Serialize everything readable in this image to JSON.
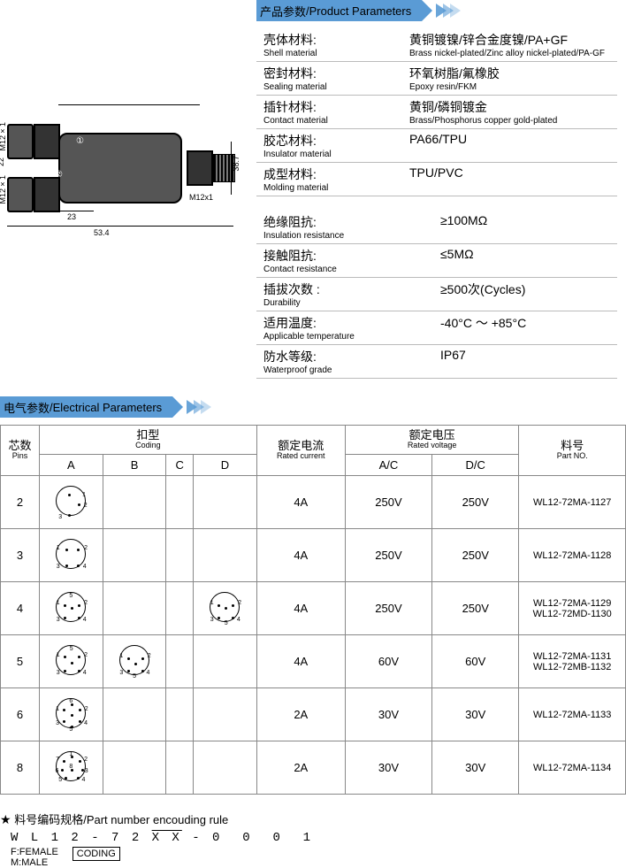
{
  "productParams": {
    "header_cn": "产品参数",
    "header_en": "Product Parameters",
    "rows": [
      {
        "label_cn": "壳体材料:",
        "label_en": "Shell material",
        "val_cn": "黄铜镀镍/锌合金度镍/PA+GF",
        "val_en": "Brass nickel-plated/Zinc alloy nickel-plated/PA-GF"
      },
      {
        "label_cn": "密封材料:",
        "label_en": "Sealing material",
        "val_cn": "环氧树脂/氟橡胶",
        "val_en": "Epoxy resin/FKM"
      },
      {
        "label_cn": "插针材料:",
        "label_en": "Contact material",
        "val_cn": "黄铜/磷铜镀金",
        "val_en": "Brass/Phosphorus copper gold-plated"
      },
      {
        "label_cn": "胶芯材料:",
        "label_en": "Insulator material",
        "val_cn": "PA66/TPU",
        "val_en": ""
      },
      {
        "label_cn": "成型材料:",
        "label_en": "Molding material",
        "val_cn": "TPU/PVC",
        "val_en": ""
      }
    ],
    "rows2": [
      {
        "label_cn": "绝缘阻抗:",
        "label_en": "Insulation resistance",
        "val": "≥100MΩ"
      },
      {
        "label_cn": "接触阻抗:",
        "label_en": "Contact resistance",
        "val": "≤5MΩ"
      },
      {
        "label_cn": "插拔次数 :",
        "label_en": "Durability",
        "val": "≥500次(Cycles)"
      },
      {
        "label_cn": "适用温度:",
        "label_en": "Applicable temperature",
        "val": "-40°C ～ +85°C"
      },
      {
        "label_cn": "防水等级:",
        "label_en": "Waterproof grade",
        "val": "IP67"
      }
    ]
  },
  "diagram": {
    "dim_m12x1_a": "M12×1",
    "dim_m12x1_b": "M12×1",
    "dim_m12x1_r": "M12x1",
    "dim_22": "22",
    "dim_23": "23",
    "dim_534": "53.4",
    "dim_387": "38.7",
    "circ1": "①",
    "circ2": "②"
  },
  "electrical": {
    "header_cn": "电气参数",
    "header_en": "Electrical Parameters",
    "columns": {
      "pins_cn": "芯数",
      "pins_en": "Pins",
      "coding_cn": "扣型",
      "coding_en": "Coding",
      "a": "A",
      "b": "B",
      "c": "C",
      "d": "D",
      "current_cn": "额定电流",
      "current_en": "Rated current",
      "voltage_cn": "额定电压",
      "voltage_en": "Rated voltage",
      "ac": "A/C",
      "dc": "D/C",
      "part_cn": "料号",
      "part_en": "Part NO."
    },
    "rows": [
      {
        "pins": "2",
        "A": {
          "dots": [
            [
              40,
              25
            ],
            [
              75,
              60
            ],
            [
              40,
              95
            ]
          ],
          "nums": [
            [
              "1",
              90,
              18
            ],
            [
              "2",
              95,
              55
            ],
            [
              "3",
              6,
              95
            ]
          ]
        },
        "B": null,
        "C": null,
        "D": null,
        "current": "4A",
        "ac": "250V",
        "dc": "250V",
        "parts": [
          "WL12-72MA-1127"
        ]
      },
      {
        "pins": "3",
        "A": {
          "dots": [
            [
              30,
              30
            ],
            [
              70,
              30
            ],
            [
              30,
              88
            ],
            [
              70,
              88
            ]
          ],
          "nums": [
            [
              "1",
              -2,
              18
            ],
            [
              "2",
              96,
              18
            ],
            [
              "3",
              -2,
              85
            ],
            [
              "4",
              92,
              85
            ]
          ]
        },
        "B": null,
        "C": null,
        "D": null,
        "current": "4A",
        "ac": "250V",
        "dc": "250V",
        "parts": [
          "WL12-72MA-1128"
        ]
      },
      {
        "pins": "4",
        "A": {
          "dots": [
            [
              25,
              40
            ],
            [
              75,
              40
            ],
            [
              50,
              50
            ],
            [
              25,
              85
            ],
            [
              75,
              85
            ]
          ],
          "nums": [
            [
              "1",
              -2,
              25
            ],
            [
              "2",
              96,
              25
            ],
            [
              "3",
              -2,
              85
            ],
            [
              "4",
              92,
              85
            ],
            [
              "5",
              44,
              0
            ]
          ]
        },
        "B": null,
        "C": null,
        "D": {
          "dots": [
            [
              25,
              40
            ],
            [
              75,
              40
            ],
            [
              50,
              50
            ],
            [
              25,
              85
            ],
            [
              75,
              85
            ]
          ],
          "nums": [
            [
              "1",
              -2,
              25
            ],
            [
              "2",
              96,
              25
            ],
            [
              "3",
              -2,
              85
            ],
            [
              "4",
              92,
              85
            ],
            [
              "5",
              48,
              95
            ]
          ]
        },
        "current": "4A",
        "ac": "250V",
        "dc": "250V",
        "parts": [
          "WL12-72MA-1129",
          "WL12-72MD-1130"
        ]
      },
      {
        "pins": "5",
        "A": {
          "dots": [
            [
              25,
              35
            ],
            [
              75,
              35
            ],
            [
              50,
              55
            ],
            [
              25,
              85
            ],
            [
              75,
              85
            ]
          ],
          "nums": [
            [
              "1",
              -2,
              20
            ],
            [
              "2",
              96,
              20
            ],
            [
              "3",
              -2,
              85
            ],
            [
              "4",
              92,
              85
            ],
            [
              "5",
              45,
              -2
            ]
          ]
        },
        "B": {
          "dots": [
            [
              25,
              40
            ],
            [
              75,
              40
            ],
            [
              50,
              58
            ],
            [
              25,
              85
            ],
            [
              75,
              85
            ]
          ],
          "nums": [
            [
              "1",
              -2,
              25
            ],
            [
              "2",
              96,
              25
            ],
            [
              "3",
              -2,
              85
            ],
            [
              "4",
              92,
              85
            ],
            [
              "5",
              44,
              95
            ]
          ]
        },
        "C": null,
        "D": null,
        "current": "4A",
        "ac": "60V",
        "dc": "60V",
        "parts": [
          "WL12-72MA-1131",
          "WL12-72MB-1132"
        ]
      },
      {
        "pins": "6",
        "A": {
          "dots": [
            [
              50,
              15
            ],
            [
              22,
              35
            ],
            [
              78,
              35
            ],
            [
              22,
              75
            ],
            [
              78,
              75
            ],
            [
              50,
              92
            ],
            [
              50,
              53
            ]
          ],
          "nums": [
            [
              "1",
              -4,
              25
            ],
            [
              "2",
              98,
              25
            ],
            [
              "3",
              -4,
              75
            ],
            [
              "4",
              96,
              75
            ],
            [
              "5",
              44,
              96
            ],
            [
              "6",
              44,
              -4
            ]
          ]
        },
        "B": null,
        "C": null,
        "D": null,
        "current": "2A",
        "ac": "30V",
        "dc": "30V",
        "parts": [
          "WL12-72MA-1133"
        ]
      },
      {
        "pins": "8",
        "A": {
          "dots": [
            [
              50,
              12
            ],
            [
              22,
              28
            ],
            [
              78,
              28
            ],
            [
              15,
              58
            ],
            [
              85,
              58
            ],
            [
              50,
              58
            ],
            [
              28,
              88
            ],
            [
              72,
              88
            ]
          ],
          "nums": [
            [
              "1",
              44,
              -4
            ],
            [
              "2",
              96,
              15
            ],
            [
              "3",
              98,
              55
            ],
            [
              "4",
              88,
              88
            ],
            [
              "5",
              6,
              88
            ],
            [
              "6",
              -6,
              55
            ],
            [
              "7",
              -4,
              15
            ],
            [
              "8",
              44,
              40
            ]
          ]
        },
        "B": null,
        "C": null,
        "D": null,
        "current": "2A",
        "ac": "30V",
        "dc": "30V",
        "parts": [
          "WL12-72MA-1134"
        ]
      }
    ]
  },
  "footer": {
    "star": "★",
    "rule_cn": "料号编码规格",
    "rule_en": "Part number encouding rule",
    "pn": "WL12-72XX-0001",
    "female": "F:FEMALE",
    "male": "M:MALE",
    "coding": "CODING"
  }
}
